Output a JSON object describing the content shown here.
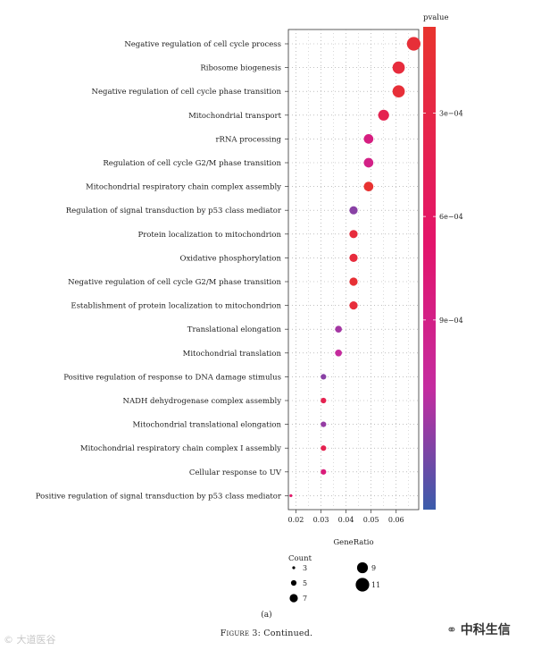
{
  "chart_data": {
    "type": "scatter",
    "categories": [
      "Negative regulation of cell cycle process",
      "Ribosome biogenesis",
      "Negative regulation of cell cycle phase transition",
      "Mitochondrial transport",
      "rRNA processing",
      "Regulation of cell cycle G2/M phase transition",
      "Mitochondrial respiratory chain complex assembly",
      "Regulation of signal transduction by p53 class mediator",
      "Protein localization to mitochondrion",
      "Oxidative phosphorylation",
      "Negative regulation of cell cycle G2/M phase transition",
      "Establishment of protein localization to mitochondrion",
      "Translational elongation",
      "Mitochondrial translation",
      "Positive regulation of response to DNA damage stimulus",
      "NADH dehydrogenase complex assembly",
      "Mitochondrial translational elongation",
      "Mitochondrial respiratory chain complex I assembly",
      "Cellular response to UV",
      "Positive regulation of signal transduction by p53 class mediator"
    ],
    "gene_ratio": [
      0.067,
      0.061,
      0.061,
      0.055,
      0.049,
      0.049,
      0.049,
      0.043,
      0.043,
      0.043,
      0.043,
      0.043,
      0.037,
      0.037,
      0.031,
      0.031,
      0.031,
      0.031,
      0.031,
      0.018
    ],
    "count": [
      11,
      10,
      10,
      9,
      8,
      8,
      8,
      7,
      7,
      7,
      7,
      7,
      6,
      6,
      5,
      5,
      5,
      5,
      5,
      3
    ],
    "pvalue": [
      0.00015,
      0.0002,
      0.00015,
      0.0004,
      0.00085,
      0.0009,
      8e-05,
      0.00125,
      0.0002,
      0.0002,
      0.00012,
      0.00018,
      0.00118,
      0.00108,
      0.00125,
      0.0004,
      0.00122,
      0.0004,
      0.0008,
      0.00065
    ],
    "xlabel": "GeneRatio",
    "xlim": [
      0.017,
      0.069
    ],
    "xticks": [
      0.02,
      0.03,
      0.04,
      0.05,
      0.06
    ],
    "xtick_labels": [
      "0.02",
      "0.03",
      "0.04",
      "0.05",
      "0.06"
    ],
    "color_legend": {
      "title": "pvalue",
      "range": [
        5e-05,
        0.00145
      ],
      "ticks": [
        0.0003,
        0.0006,
        0.0009
      ],
      "tick_labels": [
        "3e−04",
        "6e−04",
        "9e−04"
      ],
      "low_color": "#e8342e",
      "mid_color": "#e3146b",
      "mid2_color": "#c42ca0",
      "high_color": "#3a5cab"
    },
    "size_legend": {
      "title": "Count",
      "values": [
        3,
        5,
        7,
        9,
        11
      ],
      "labels": [
        "3",
        "5",
        "7",
        "9",
        "11"
      ]
    },
    "grid": true
  },
  "caption": {
    "subfigure": "(a)",
    "figure_prefix": "Figure 3:",
    "figure_text": " Continued."
  },
  "watermarks": {
    "left": "© 大道医谷",
    "right": "中科生信",
    "right_icon": "wechat-icon"
  }
}
